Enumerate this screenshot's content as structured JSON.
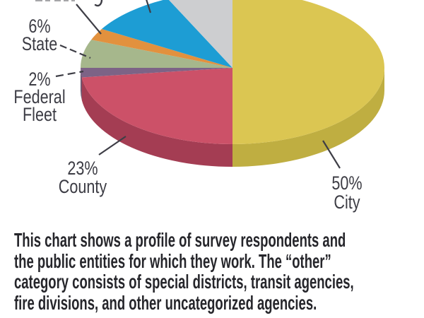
{
  "chart_data": {
    "type": "pie",
    "style": "3d",
    "start_angle_deg": 90,
    "direction": "clockwise",
    "slices": [
      {
        "key": "city",
        "label": "City",
        "pct": 50,
        "color": "#dbc652",
        "side_color": "#bfae41"
      },
      {
        "key": "county",
        "label": "County",
        "pct": 23,
        "color": "#cc5168",
        "side_color": "#a43d53"
      },
      {
        "key": "federal-fleet",
        "label": "Federal Fleet",
        "pct": 2,
        "color": "#7d6386",
        "side_color": "#5e4a66"
      },
      {
        "key": "state",
        "label": "State",
        "pct": 6,
        "color": "#a6b78c",
        "side_color": "#87996f"
      },
      {
        "key": "cutoff-orange",
        "label": "",
        "pct": 2.5,
        "color": "#e2913e",
        "side_color": "#b87328"
      },
      {
        "key": "cutoff-blue",
        "label": "",
        "pct": 9.5,
        "color": "#1d9dd4",
        "side_color": "#1578a3"
      },
      {
        "key": "cutoff-gray",
        "label": "",
        "pct": 7,
        "color": "#cdced0",
        "side_color": "#a8a9ab"
      }
    ],
    "top_edge_note": "pie rim and the labels of three small slices are cropped at the top edge of the image; only a 'y' descender fragment of that text remains visible"
  },
  "pie_labels": {
    "state": {
      "lines": [
        "6%",
        "State"
      ]
    },
    "federal": {
      "lines": [
        "2%",
        "Federal",
        "Fleet"
      ]
    },
    "county": {
      "lines": [
        "23%",
        "County"
      ]
    },
    "city": {
      "lines": [
        "50%",
        "City"
      ]
    }
  },
  "cutoff_fragment": "y",
  "caption": {
    "lines": [
      "This chart shows a profile of survey respondents and",
      "the public entities for which they work. The “other”",
      "category consists of special districts, transit agencies,",
      "fire divisions, and other uncategorized agencies."
    ]
  },
  "colors": {
    "background": "#ffffff",
    "label_text": "#3c3c44",
    "caption_text": "#26262b",
    "leader_line": "#3e3e46"
  }
}
